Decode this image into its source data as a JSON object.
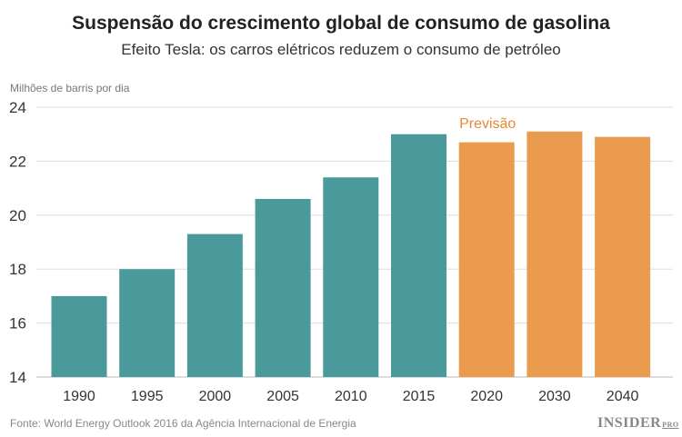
{
  "chart_data": {
    "type": "bar",
    "title": "Suspensão do crescimento global de consumo de gasolina",
    "subtitle": "Efeito Tesla: os carros elétricos reduzem o consumo de petróleo",
    "ylabel": "Milhões de barris por dia",
    "xlabel": "",
    "categories": [
      "1990",
      "1995",
      "2000",
      "2005",
      "2010",
      "2015",
      "2020",
      "2030",
      "2040"
    ],
    "values": [
      17.0,
      18.0,
      19.3,
      20.6,
      21.4,
      23.0,
      22.7,
      23.1,
      22.9
    ],
    "forecast": [
      false,
      false,
      false,
      false,
      false,
      false,
      true,
      true,
      true
    ],
    "annotation": "Previsão",
    "ylim": [
      14,
      24
    ],
    "yticks": [
      14,
      16,
      18,
      20,
      22,
      24
    ],
    "grid": true,
    "colors": {
      "historical": "#4a9a9c",
      "forecast": "#eb9b4e",
      "annotation": "#e8892f"
    }
  },
  "source": "Fonte: World Energy Outlook 2016 da Agência Internacional de Energia",
  "logo": {
    "main": "INSIDER",
    "sub": "PRO"
  }
}
